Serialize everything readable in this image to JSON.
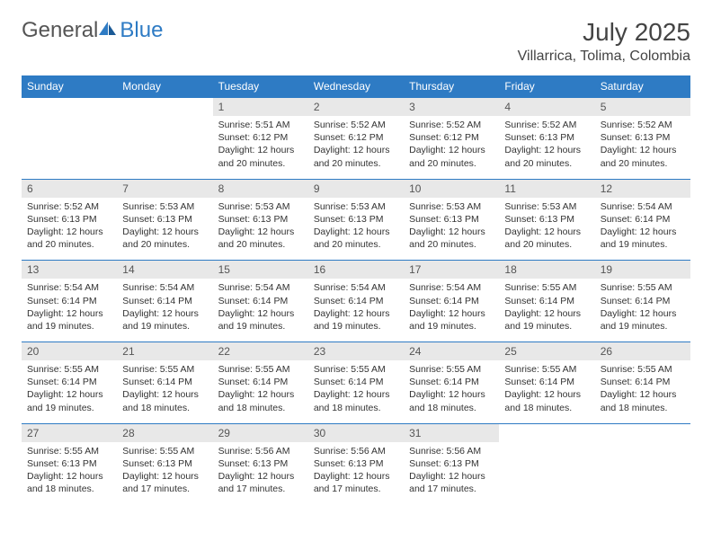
{
  "brand": {
    "text_part1": "General",
    "text_part2": "Blue",
    "color_gray": "#555555",
    "color_blue": "#2e7bc4"
  },
  "title": {
    "month_year": "July 2025",
    "location": "Villarrica, Tolima, Colombia"
  },
  "colors": {
    "header_bg": "#2e7bc4",
    "header_text": "#ffffff",
    "daynum_bg": "#e8e8e8",
    "daynum_text": "#555555",
    "body_text": "#333333",
    "border": "#2e7bc4"
  },
  "day_names": [
    "Sunday",
    "Monday",
    "Tuesday",
    "Wednesday",
    "Thursday",
    "Friday",
    "Saturday"
  ],
  "weeks": [
    {
      "numbers": [
        "",
        "",
        "1",
        "2",
        "3",
        "4",
        "5"
      ],
      "content": [
        "",
        "",
        "Sunrise: 5:51 AM\nSunset: 6:12 PM\nDaylight: 12 hours and 20 minutes.",
        "Sunrise: 5:52 AM\nSunset: 6:12 PM\nDaylight: 12 hours and 20 minutes.",
        "Sunrise: 5:52 AM\nSunset: 6:12 PM\nDaylight: 12 hours and 20 minutes.",
        "Sunrise: 5:52 AM\nSunset: 6:13 PM\nDaylight: 12 hours and 20 minutes.",
        "Sunrise: 5:52 AM\nSunset: 6:13 PM\nDaylight: 12 hours and 20 minutes."
      ]
    },
    {
      "numbers": [
        "6",
        "7",
        "8",
        "9",
        "10",
        "11",
        "12"
      ],
      "content": [
        "Sunrise: 5:52 AM\nSunset: 6:13 PM\nDaylight: 12 hours and 20 minutes.",
        "Sunrise: 5:53 AM\nSunset: 6:13 PM\nDaylight: 12 hours and 20 minutes.",
        "Sunrise: 5:53 AM\nSunset: 6:13 PM\nDaylight: 12 hours and 20 minutes.",
        "Sunrise: 5:53 AM\nSunset: 6:13 PM\nDaylight: 12 hours and 20 minutes.",
        "Sunrise: 5:53 AM\nSunset: 6:13 PM\nDaylight: 12 hours and 20 minutes.",
        "Sunrise: 5:53 AM\nSunset: 6:13 PM\nDaylight: 12 hours and 20 minutes.",
        "Sunrise: 5:54 AM\nSunset: 6:14 PM\nDaylight: 12 hours and 19 minutes."
      ]
    },
    {
      "numbers": [
        "13",
        "14",
        "15",
        "16",
        "17",
        "18",
        "19"
      ],
      "content": [
        "Sunrise: 5:54 AM\nSunset: 6:14 PM\nDaylight: 12 hours and 19 minutes.",
        "Sunrise: 5:54 AM\nSunset: 6:14 PM\nDaylight: 12 hours and 19 minutes.",
        "Sunrise: 5:54 AM\nSunset: 6:14 PM\nDaylight: 12 hours and 19 minutes.",
        "Sunrise: 5:54 AM\nSunset: 6:14 PM\nDaylight: 12 hours and 19 minutes.",
        "Sunrise: 5:54 AM\nSunset: 6:14 PM\nDaylight: 12 hours and 19 minutes.",
        "Sunrise: 5:55 AM\nSunset: 6:14 PM\nDaylight: 12 hours and 19 minutes.",
        "Sunrise: 5:55 AM\nSunset: 6:14 PM\nDaylight: 12 hours and 19 minutes."
      ]
    },
    {
      "numbers": [
        "20",
        "21",
        "22",
        "23",
        "24",
        "25",
        "26"
      ],
      "content": [
        "Sunrise: 5:55 AM\nSunset: 6:14 PM\nDaylight: 12 hours and 19 minutes.",
        "Sunrise: 5:55 AM\nSunset: 6:14 PM\nDaylight: 12 hours and 18 minutes.",
        "Sunrise: 5:55 AM\nSunset: 6:14 PM\nDaylight: 12 hours and 18 minutes.",
        "Sunrise: 5:55 AM\nSunset: 6:14 PM\nDaylight: 12 hours and 18 minutes.",
        "Sunrise: 5:55 AM\nSunset: 6:14 PM\nDaylight: 12 hours and 18 minutes.",
        "Sunrise: 5:55 AM\nSunset: 6:14 PM\nDaylight: 12 hours and 18 minutes.",
        "Sunrise: 5:55 AM\nSunset: 6:14 PM\nDaylight: 12 hours and 18 minutes."
      ]
    },
    {
      "numbers": [
        "27",
        "28",
        "29",
        "30",
        "31",
        "",
        ""
      ],
      "content": [
        "Sunrise: 5:55 AM\nSunset: 6:13 PM\nDaylight: 12 hours and 18 minutes.",
        "Sunrise: 5:55 AM\nSunset: 6:13 PM\nDaylight: 12 hours and 17 minutes.",
        "Sunrise: 5:56 AM\nSunset: 6:13 PM\nDaylight: 12 hours and 17 minutes.",
        "Sunrise: 5:56 AM\nSunset: 6:13 PM\nDaylight: 12 hours and 17 minutes.",
        "Sunrise: 5:56 AM\nSunset: 6:13 PM\nDaylight: 12 hours and 17 minutes.",
        "",
        ""
      ]
    }
  ]
}
